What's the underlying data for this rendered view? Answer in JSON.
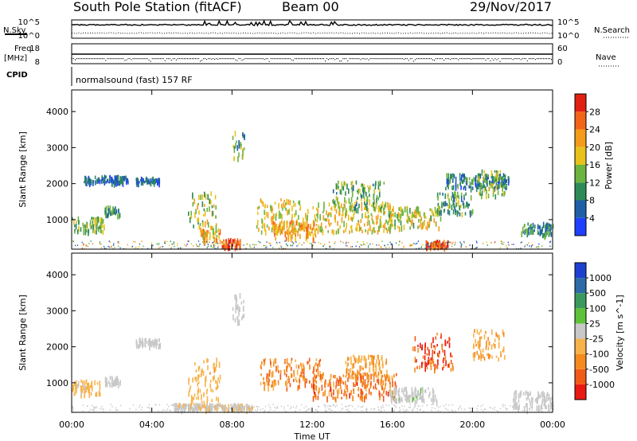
{
  "header": {
    "station_title": "South Pole Station (fitACF)",
    "beam": "Beam 00",
    "date": "29/Nov/2017"
  },
  "panels": {
    "sky": {
      "left_label": "N.Sky",
      "right_label": "N.Search",
      "ticks": [
        "10^5",
        "10^0"
      ]
    },
    "freq": {
      "left_label": "Freq.",
      "left_unit": "[MHz]",
      "left_ticks": [
        "18",
        "8"
      ],
      "right_label": "Nave",
      "right_ticks": [
        "60",
        "0"
      ]
    },
    "cpid": {
      "label": "CPID",
      "text": "normalsound (fast) 157 RF"
    }
  },
  "chart_data": [
    {
      "type": "heatmap",
      "quantity": "power",
      "xlabel": "Time UT",
      "ylabel": "Slant Range [km]",
      "x_ticks": [
        "00:00",
        "04:00",
        "08:00",
        "12:00",
        "16:00",
        "20:00",
        "00:00"
      ],
      "x_range_hours": [
        0,
        24
      ],
      "y_ticks": [
        1000,
        2000,
        3000,
        4000
      ],
      "y_range_km": [
        180,
        4600
      ],
      "colorbar": {
        "label": "Power [dB]",
        "ticks": [
          4,
          8,
          12,
          16,
          20,
          24,
          28
        ],
        "range": [
          0,
          32
        ],
        "colors": [
          "#1f3fff",
          "#1f5fa8",
          "#2e8b57",
          "#6db33f",
          "#e8c21a",
          "#f59b1a",
          "#f26418",
          "#e02010"
        ]
      },
      "regions": [
        {
          "t": [
            0.0,
            1.6
          ],
          "r": [
            700,
            1100
          ],
          "level": 14
        },
        {
          "t": [
            0.6,
            2.8
          ],
          "r": [
            2050,
            2250
          ],
          "level": 6
        },
        {
          "t": [
            1.6,
            2.4
          ],
          "r": [
            1150,
            1400
          ],
          "level": 10
        },
        {
          "t": [
            3.2,
            4.4
          ],
          "r": [
            2050,
            2200
          ],
          "level": 6
        },
        {
          "t": [
            5.8,
            7.2
          ],
          "r": [
            600,
            1800
          ],
          "level": 16
        },
        {
          "t": [
            6.4,
            7.4
          ],
          "r": [
            400,
            800
          ],
          "level": 20
        },
        {
          "t": [
            7.4,
            8.4
          ],
          "r": [
            250,
            500
          ],
          "level": 28
        },
        {
          "t": [
            8.0,
            8.6
          ],
          "r": [
            2700,
            3500
          ],
          "level": 12
        },
        {
          "t": [
            9.2,
            11.8
          ],
          "r": [
            700,
            1600
          ],
          "level": 18
        },
        {
          "t": [
            10.0,
            12.2
          ],
          "r": [
            500,
            1000
          ],
          "level": 22
        },
        {
          "t": [
            12.0,
            16.0
          ],
          "r": [
            700,
            1500
          ],
          "level": 18
        },
        {
          "t": [
            13.0,
            15.6
          ],
          "r": [
            1300,
            2100
          ],
          "level": 13
        },
        {
          "t": [
            15.8,
            18.4
          ],
          "r": [
            800,
            1400
          ],
          "level": 17
        },
        {
          "t": [
            17.6,
            18.8
          ],
          "r": [
            250,
            450
          ],
          "level": 27
        },
        {
          "t": [
            18.2,
            20.0
          ],
          "r": [
            1200,
            1800
          ],
          "level": 11
        },
        {
          "t": [
            18.6,
            21.8
          ],
          "r": [
            1900,
            2300
          ],
          "level": 8
        },
        {
          "t": [
            20.2,
            21.6
          ],
          "r": [
            1700,
            2400
          ],
          "level": 14
        },
        {
          "t": [
            22.4,
            24.0
          ],
          "r": [
            600,
            950
          ],
          "level": 10
        }
      ]
    },
    {
      "type": "heatmap",
      "quantity": "velocity",
      "xlabel": "Time UT",
      "ylabel": "Slant Range [km]",
      "x_ticks": [
        "00:00",
        "04:00",
        "08:00",
        "12:00",
        "16:00",
        "20:00",
        "00:00"
      ],
      "x_range_hours": [
        0,
        24
      ],
      "y_ticks": [
        1000,
        2000,
        3000,
        4000
      ],
      "y_range_km": [
        180,
        4600
      ],
      "colorbar": {
        "label": "Velocity [m s^-1]",
        "ticks": [
          1000,
          500,
          100,
          25,
          -25,
          -100,
          -500,
          -1000
        ],
        "range": [
          -1300,
          1300
        ],
        "colors": [
          "#e81a12",
          "#f25a18",
          "#f58a1e",
          "#f7b24a",
          "#c8c8c8",
          "#5ec23a",
          "#3a9a5c",
          "#2c6aa8",
          "#1f3fd0"
        ]
      },
      "regions": [
        {
          "t": [
            0.0,
            1.4
          ],
          "r": [
            700,
            1100
          ],
          "level": -200
        },
        {
          "t": [
            1.6,
            2.4
          ],
          "r": [
            1000,
            1200
          ],
          "level": 60
        },
        {
          "t": [
            3.2,
            4.4
          ],
          "r": [
            2050,
            2250
          ],
          "level": 0
        },
        {
          "t": [
            5.8,
            7.4
          ],
          "r": [
            500,
            1700
          ],
          "level": -300
        },
        {
          "t": [
            5.0,
            9.0
          ],
          "r": [
            300,
            450
          ],
          "level": -120
        },
        {
          "t": [
            8.0,
            8.6
          ],
          "r": [
            2700,
            3500
          ],
          "level": 0
        },
        {
          "t": [
            9.4,
            12.4
          ],
          "r": [
            900,
            1700
          ],
          "level": -600
        },
        {
          "t": [
            12.0,
            16.2
          ],
          "r": [
            600,
            1300
          ],
          "level": -700
        },
        {
          "t": [
            13.6,
            15.8
          ],
          "r": [
            1200,
            1800
          ],
          "level": -400
        },
        {
          "t": [
            15.8,
            18.2
          ],
          "r": [
            500,
            900
          ],
          "level": 90
        },
        {
          "t": [
            17.0,
            19.0
          ],
          "r": [
            1400,
            2400
          ],
          "level": -900
        },
        {
          "t": [
            20.0,
            21.6
          ],
          "r": [
            1700,
            2500
          ],
          "level": -400
        },
        {
          "t": [
            22.0,
            24.0
          ],
          "r": [
            300,
            800
          ],
          "level": 0
        }
      ]
    }
  ]
}
